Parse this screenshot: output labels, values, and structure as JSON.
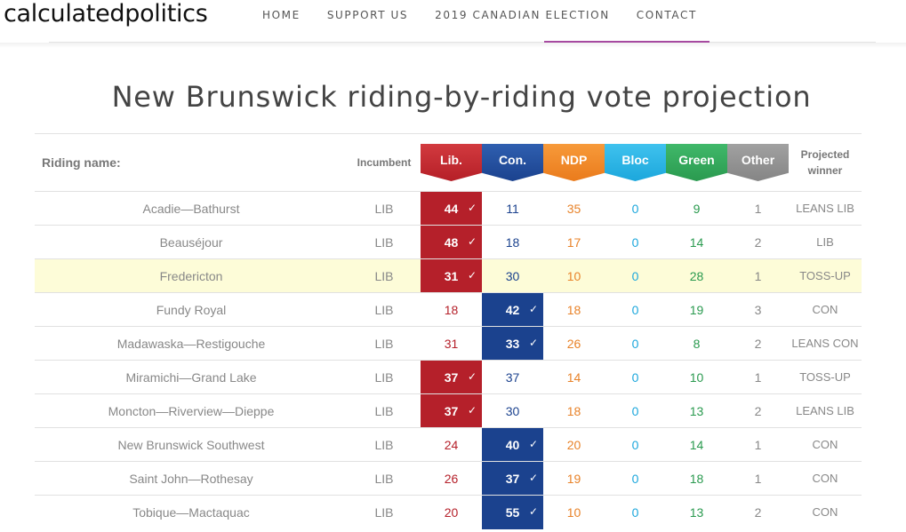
{
  "site": {
    "logo": "calculatedpolitics"
  },
  "nav": {
    "items": [
      "HOME",
      "SUPPORT US",
      "2019 CANADIAN ELECTION",
      "CONTACT"
    ]
  },
  "page": {
    "title": "New Brunswick riding-by-riding vote projection"
  },
  "table": {
    "headers": {
      "riding": "Riding name:",
      "incumbent": "Incumbent",
      "parties": [
        "Lib.",
        "Con.",
        "NDP",
        "Bloc",
        "Green",
        "Other"
      ],
      "winner_line1": "Projected",
      "winner_line2": "winner"
    },
    "check_icon": "✓",
    "colors": {
      "lib": "#b5202a",
      "con": "#1b428e",
      "ndp": "#e8832a",
      "bloc": "#1ca7dc",
      "green": "#2a9a4f",
      "other": "#888888",
      "highlight": "#fdfcd8"
    },
    "rows": [
      {
        "riding": "Acadie—Bathurst",
        "incumbent": "LIB",
        "lib": "44",
        "con": "11",
        "ndp": "35",
        "bloc": "0",
        "green": "9",
        "other": "1",
        "winner": "LEANS LIB",
        "leader": "lib",
        "highlight": false
      },
      {
        "riding": "Beauséjour",
        "incumbent": "LIB",
        "lib": "48",
        "con": "18",
        "ndp": "17",
        "bloc": "0",
        "green": "14",
        "other": "2",
        "winner": "LIB",
        "leader": "lib",
        "highlight": false
      },
      {
        "riding": "Fredericton",
        "incumbent": "LIB",
        "lib": "31",
        "con": "30",
        "ndp": "10",
        "bloc": "0",
        "green": "28",
        "other": "1",
        "winner": "TOSS-UP",
        "leader": "lib",
        "highlight": true
      },
      {
        "riding": "Fundy Royal",
        "incumbent": "LIB",
        "lib": "18",
        "con": "42",
        "ndp": "18",
        "bloc": "0",
        "green": "19",
        "other": "3",
        "winner": "CON",
        "leader": "con",
        "highlight": false
      },
      {
        "riding": "Madawaska—Restigouche",
        "incumbent": "LIB",
        "lib": "31",
        "con": "33",
        "ndp": "26",
        "bloc": "0",
        "green": "8",
        "other": "2",
        "winner": "LEANS CON",
        "leader": "con",
        "highlight": false
      },
      {
        "riding": "Miramichi—Grand Lake",
        "incumbent": "LIB",
        "lib": "37",
        "con": "37",
        "ndp": "14",
        "bloc": "0",
        "green": "10",
        "other": "1",
        "winner": "TOSS-UP",
        "leader": "lib",
        "highlight": false
      },
      {
        "riding": "Moncton—Riverview—Dieppe",
        "incumbent": "LIB",
        "lib": "37",
        "con": "30",
        "ndp": "18",
        "bloc": "0",
        "green": "13",
        "other": "2",
        "winner": "LEANS LIB",
        "leader": "lib",
        "highlight": false
      },
      {
        "riding": "New Brunswick Southwest",
        "incumbent": "LIB",
        "lib": "24",
        "con": "40",
        "ndp": "20",
        "bloc": "0",
        "green": "14",
        "other": "1",
        "winner": "CON",
        "leader": "con",
        "highlight": false
      },
      {
        "riding": "Saint John—Rothesay",
        "incumbent": "LIB",
        "lib": "26",
        "con": "37",
        "ndp": "19",
        "bloc": "0",
        "green": "18",
        "other": "1",
        "winner": "CON",
        "leader": "con",
        "highlight": false
      },
      {
        "riding": "Tobique—Mactaquac",
        "incumbent": "LIB",
        "lib": "20",
        "con": "55",
        "ndp": "10",
        "bloc": "0",
        "green": "13",
        "other": "2",
        "winner": "CON",
        "leader": "con",
        "highlight": false
      }
    ]
  }
}
